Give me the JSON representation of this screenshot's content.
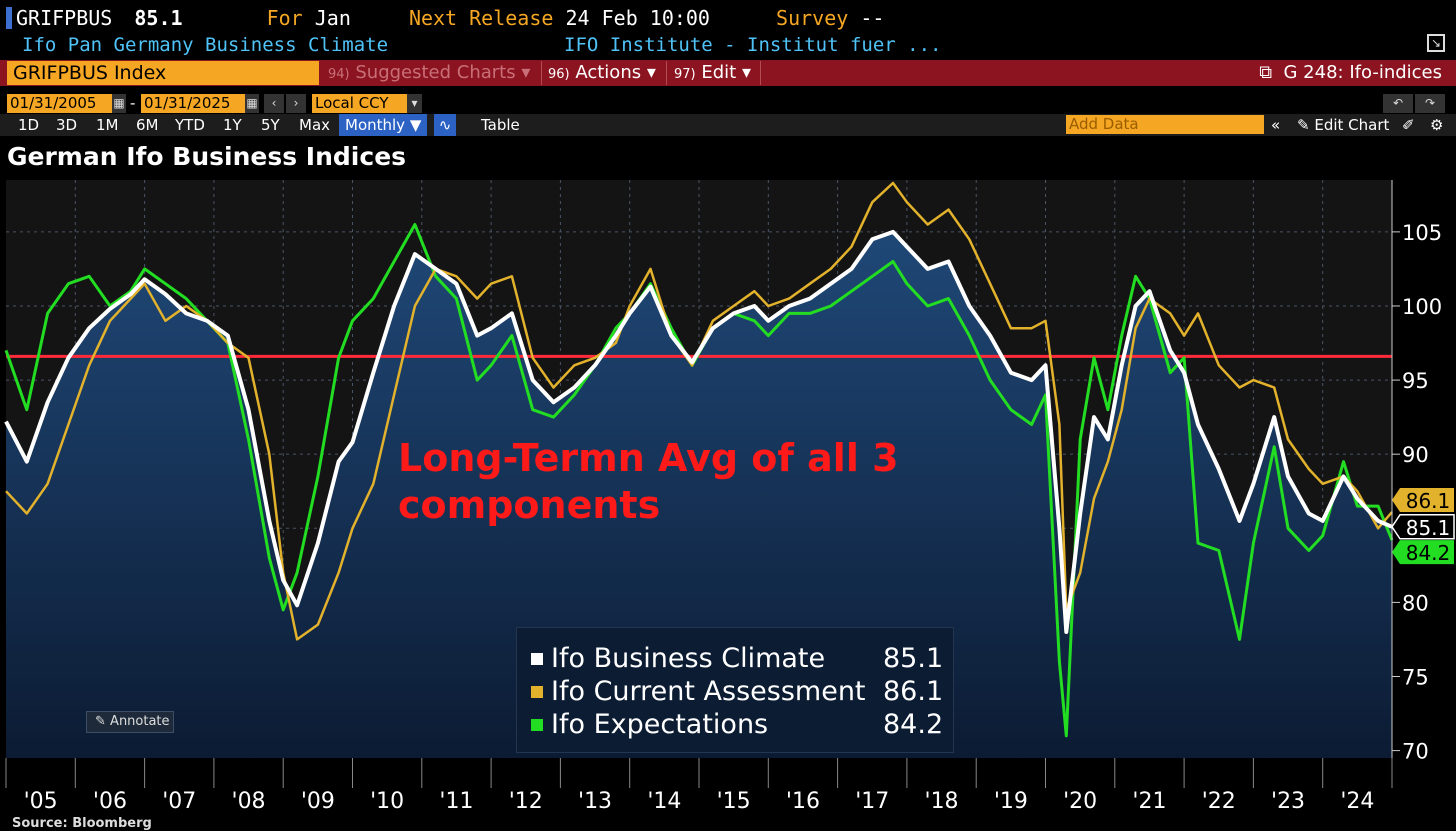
{
  "header": {
    "ticker": "GRIFPBUS",
    "last_value": "85.1",
    "for_label": "For",
    "for_value": "Jan",
    "next_release_label": "Next Release",
    "next_release_value": "24 Feb 10:00",
    "survey_label": "Survey",
    "survey_value": "--",
    "description": "Ifo Pan Germany Business Climate",
    "source_name": "IFO Institute - Institut fuer ..."
  },
  "menubar": {
    "index_name": "GRIFPBUS Index",
    "suggested_num": "94)",
    "suggested_label": "Suggested Charts",
    "actions_num": "96)",
    "actions_label": "Actions",
    "edit_num": "97)",
    "edit_label": "Edit",
    "chart_id": "G 248: Ifo-indices"
  },
  "controls": {
    "start_date": "01/31/2005",
    "dash": "-",
    "end_date": "01/31/2025",
    "currency": "Local CCY",
    "ranges": [
      "1D",
      "3D",
      "1M",
      "6M",
      "YTD",
      "1Y",
      "5Y",
      "Max"
    ],
    "frequency": "Monthly",
    "table_label": "Table",
    "add_data_placeholder": "Add Data",
    "edit_chart_label": "Edit Chart"
  },
  "annotate_label": "Annotate",
  "source_label": "Source: Bloomberg",
  "colors": {
    "climate": "#ffffff",
    "current": "#e3b22c",
    "expectations": "#22dd22",
    "average_line": "#ff2b3a",
    "area_top": "#1f4877",
    "area_bottom": "#0c1b33"
  },
  "chart_data": {
    "type": "line",
    "title": "German Ifo Business Indices",
    "xlabel": "",
    "ylabel": "",
    "ylim": [
      69.5,
      108.5
    ],
    "y_ticks": [
      70,
      75,
      80,
      85,
      90,
      95,
      100,
      105
    ],
    "x_tick_labels": [
      "'05",
      "'06",
      "'07",
      "'08",
      "'09",
      "'10",
      "'11",
      "'12",
      "'13",
      "'14",
      "'15",
      "'16",
      "'17",
      "'18",
      "'19",
      "'20",
      "'21",
      "'22",
      "'23",
      "'24"
    ],
    "x_range": [
      "2005-01",
      "2025-01"
    ],
    "grid": true,
    "legend_position": "bottom-center",
    "annotation": "Long-Termn Avg of all 3 components",
    "average_value": 96.6,
    "series": [
      {
        "name": "Ifo Business Climate",
        "last": "85.1",
        "points": [
          [
            2005.0,
            92.2
          ],
          [
            2005.3,
            89.5
          ],
          [
            2005.6,
            93.5
          ],
          [
            2005.9,
            96.5
          ],
          [
            2006.2,
            98.5
          ],
          [
            2006.5,
            99.8
          ],
          [
            2006.8,
            100.8
          ],
          [
            2007.0,
            101.8
          ],
          [
            2007.3,
            100.8
          ],
          [
            2007.6,
            99.5
          ],
          [
            2007.9,
            99.0
          ],
          [
            2008.2,
            98.0
          ],
          [
            2008.5,
            93.0
          ],
          [
            2008.8,
            85.5
          ],
          [
            2009.0,
            81.5
          ],
          [
            2009.2,
            79.8
          ],
          [
            2009.5,
            84.0
          ],
          [
            2009.8,
            89.5
          ],
          [
            2010.0,
            90.8
          ],
          [
            2010.3,
            95.5
          ],
          [
            2010.6,
            100.0
          ],
          [
            2010.9,
            103.5
          ],
          [
            2011.2,
            102.5
          ],
          [
            2011.5,
            101.5
          ],
          [
            2011.8,
            98.0
          ],
          [
            2012.0,
            98.5
          ],
          [
            2012.3,
            99.5
          ],
          [
            2012.6,
            95.0
          ],
          [
            2012.9,
            93.5
          ],
          [
            2013.2,
            94.5
          ],
          [
            2013.5,
            96.0
          ],
          [
            2013.8,
            98.0
          ],
          [
            2014.0,
            99.5
          ],
          [
            2014.3,
            101.3
          ],
          [
            2014.6,
            98.0
          ],
          [
            2014.9,
            96.2
          ],
          [
            2015.2,
            98.5
          ],
          [
            2015.5,
            99.5
          ],
          [
            2015.8,
            100.0
          ],
          [
            2016.0,
            99.0
          ],
          [
            2016.3,
            100.0
          ],
          [
            2016.6,
            100.5
          ],
          [
            2016.9,
            101.5
          ],
          [
            2017.2,
            102.5
          ],
          [
            2017.5,
            104.5
          ],
          [
            2017.8,
            105.0
          ],
          [
            2018.0,
            104.0
          ],
          [
            2018.3,
            102.5
          ],
          [
            2018.6,
            103.0
          ],
          [
            2018.9,
            100.0
          ],
          [
            2019.2,
            98.0
          ],
          [
            2019.5,
            95.5
          ],
          [
            2019.8,
            95.0
          ],
          [
            2020.0,
            96.0
          ],
          [
            2020.2,
            85.0
          ],
          [
            2020.3,
            78.0
          ],
          [
            2020.5,
            86.0
          ],
          [
            2020.7,
            92.5
          ],
          [
            2020.9,
            91.0
          ],
          [
            2021.1,
            96.0
          ],
          [
            2021.3,
            100.0
          ],
          [
            2021.5,
            101.0
          ],
          [
            2021.8,
            97.0
          ],
          [
            2022.0,
            95.5
          ],
          [
            2022.2,
            92.0
          ],
          [
            2022.5,
            89.0
          ],
          [
            2022.8,
            85.5
          ],
          [
            2023.0,
            88.0
          ],
          [
            2023.3,
            92.5
          ],
          [
            2023.5,
            88.5
          ],
          [
            2023.8,
            86.0
          ],
          [
            2024.0,
            85.5
          ],
          [
            2024.3,
            88.5
          ],
          [
            2024.5,
            87.0
          ],
          [
            2024.8,
            85.5
          ],
          [
            2025.0,
            85.1
          ]
        ]
      },
      {
        "name": "Ifo Current Assessment",
        "last": "86.1",
        "points": [
          [
            2005.0,
            87.5
          ],
          [
            2005.3,
            86.0
          ],
          [
            2005.6,
            88.0
          ],
          [
            2005.9,
            92.0
          ],
          [
            2006.2,
            96.0
          ],
          [
            2006.5,
            99.0
          ],
          [
            2006.8,
            100.5
          ],
          [
            2007.0,
            101.5
          ],
          [
            2007.3,
            99.0
          ],
          [
            2007.6,
            100.0
          ],
          [
            2007.9,
            99.0
          ],
          [
            2008.2,
            97.5
          ],
          [
            2008.5,
            96.5
          ],
          [
            2008.8,
            90.0
          ],
          [
            2009.0,
            82.0
          ],
          [
            2009.2,
            77.5
          ],
          [
            2009.5,
            78.5
          ],
          [
            2009.8,
            82.0
          ],
          [
            2010.0,
            85.0
          ],
          [
            2010.3,
            88.0
          ],
          [
            2010.6,
            94.0
          ],
          [
            2010.9,
            100.0
          ],
          [
            2011.2,
            102.5
          ],
          [
            2011.5,
            102.0
          ],
          [
            2011.8,
            100.5
          ],
          [
            2012.0,
            101.5
          ],
          [
            2012.3,
            102.0
          ],
          [
            2012.6,
            96.5
          ],
          [
            2012.9,
            94.5
          ],
          [
            2013.2,
            96.0
          ],
          [
            2013.5,
            96.5
          ],
          [
            2013.8,
            97.5
          ],
          [
            2014.0,
            100.0
          ],
          [
            2014.3,
            102.5
          ],
          [
            2014.6,
            98.0
          ],
          [
            2014.9,
            96.0
          ],
          [
            2015.2,
            99.0
          ],
          [
            2015.5,
            100.0
          ],
          [
            2015.8,
            101.0
          ],
          [
            2016.0,
            100.0
          ],
          [
            2016.3,
            100.5
          ],
          [
            2016.6,
            101.5
          ],
          [
            2016.9,
            102.5
          ],
          [
            2017.2,
            104.0
          ],
          [
            2017.5,
            107.0
          ],
          [
            2017.8,
            108.3
          ],
          [
            2018.0,
            107.0
          ],
          [
            2018.3,
            105.5
          ],
          [
            2018.6,
            106.5
          ],
          [
            2018.9,
            104.5
          ],
          [
            2019.2,
            101.5
          ],
          [
            2019.5,
            98.5
          ],
          [
            2019.8,
            98.5
          ],
          [
            2020.0,
            99.0
          ],
          [
            2020.2,
            92.0
          ],
          [
            2020.3,
            79.5
          ],
          [
            2020.5,
            82.0
          ],
          [
            2020.7,
            87.0
          ],
          [
            2020.9,
            89.5
          ],
          [
            2021.1,
            93.0
          ],
          [
            2021.3,
            98.5
          ],
          [
            2021.5,
            100.5
          ],
          [
            2021.8,
            99.5
          ],
          [
            2022.0,
            98.0
          ],
          [
            2022.2,
            99.5
          ],
          [
            2022.5,
            96.0
          ],
          [
            2022.8,
            94.5
          ],
          [
            2023.0,
            95.0
          ],
          [
            2023.3,
            94.5
          ],
          [
            2023.5,
            91.0
          ],
          [
            2023.8,
            89.0
          ],
          [
            2024.0,
            88.0
          ],
          [
            2024.3,
            88.5
          ],
          [
            2024.5,
            87.5
          ],
          [
            2024.8,
            85.0
          ],
          [
            2025.0,
            86.1
          ]
        ]
      },
      {
        "name": "Ifo Expectations",
        "last": "84.2",
        "points": [
          [
            2005.0,
            97.0
          ],
          [
            2005.3,
            93.0
          ],
          [
            2005.6,
            99.5
          ],
          [
            2005.9,
            101.5
          ],
          [
            2006.2,
            102.0
          ],
          [
            2006.5,
            100.0
          ],
          [
            2006.8,
            101.0
          ],
          [
            2007.0,
            102.5
          ],
          [
            2007.3,
            101.5
          ],
          [
            2007.6,
            100.5
          ],
          [
            2007.9,
            99.0
          ],
          [
            2008.2,
            97.5
          ],
          [
            2008.5,
            91.0
          ],
          [
            2008.8,
            83.0
          ],
          [
            2009.0,
            79.5
          ],
          [
            2009.2,
            82.0
          ],
          [
            2009.5,
            88.5
          ],
          [
            2009.8,
            96.5
          ],
          [
            2010.0,
            99.0
          ],
          [
            2010.3,
            100.5
          ],
          [
            2010.6,
            103.0
          ],
          [
            2010.9,
            105.5
          ],
          [
            2011.2,
            102.0
          ],
          [
            2011.5,
            100.5
          ],
          [
            2011.8,
            95.0
          ],
          [
            2012.0,
            96.0
          ],
          [
            2012.3,
            98.0
          ],
          [
            2012.6,
            93.0
          ],
          [
            2012.9,
            92.5
          ],
          [
            2013.2,
            94.0
          ],
          [
            2013.5,
            96.0
          ],
          [
            2013.8,
            98.5
          ],
          [
            2014.0,
            99.5
          ],
          [
            2014.3,
            101.5
          ],
          [
            2014.6,
            98.5
          ],
          [
            2014.9,
            96.0
          ],
          [
            2015.2,
            98.5
          ],
          [
            2015.5,
            99.5
          ],
          [
            2015.8,
            99.0
          ],
          [
            2016.0,
            98.0
          ],
          [
            2016.3,
            99.5
          ],
          [
            2016.6,
            99.5
          ],
          [
            2016.9,
            100.0
          ],
          [
            2017.2,
            101.0
          ],
          [
            2017.5,
            102.0
          ],
          [
            2017.8,
            103.0
          ],
          [
            2018.0,
            101.5
          ],
          [
            2018.3,
            100.0
          ],
          [
            2018.6,
            100.5
          ],
          [
            2018.9,
            98.0
          ],
          [
            2019.2,
            95.0
          ],
          [
            2019.5,
            93.0
          ],
          [
            2019.8,
            92.0
          ],
          [
            2020.0,
            94.0
          ],
          [
            2020.2,
            76.0
          ],
          [
            2020.3,
            71.0
          ],
          [
            2020.5,
            91.0
          ],
          [
            2020.7,
            96.5
          ],
          [
            2020.9,
            93.0
          ],
          [
            2021.1,
            98.0
          ],
          [
            2021.3,
            102.0
          ],
          [
            2021.5,
            100.5
          ],
          [
            2021.8,
            95.5
          ],
          [
            2022.0,
            96.5
          ],
          [
            2022.2,
            84.0
          ],
          [
            2022.5,
            83.5
          ],
          [
            2022.8,
            77.5
          ],
          [
            2023.0,
            84.0
          ],
          [
            2023.3,
            90.5
          ],
          [
            2023.5,
            85.0
          ],
          [
            2023.8,
            83.5
          ],
          [
            2024.0,
            84.5
          ],
          [
            2024.3,
            89.5
          ],
          [
            2024.5,
            86.5
          ],
          [
            2024.8,
            86.5
          ],
          [
            2025.0,
            84.2
          ]
        ]
      }
    ]
  }
}
